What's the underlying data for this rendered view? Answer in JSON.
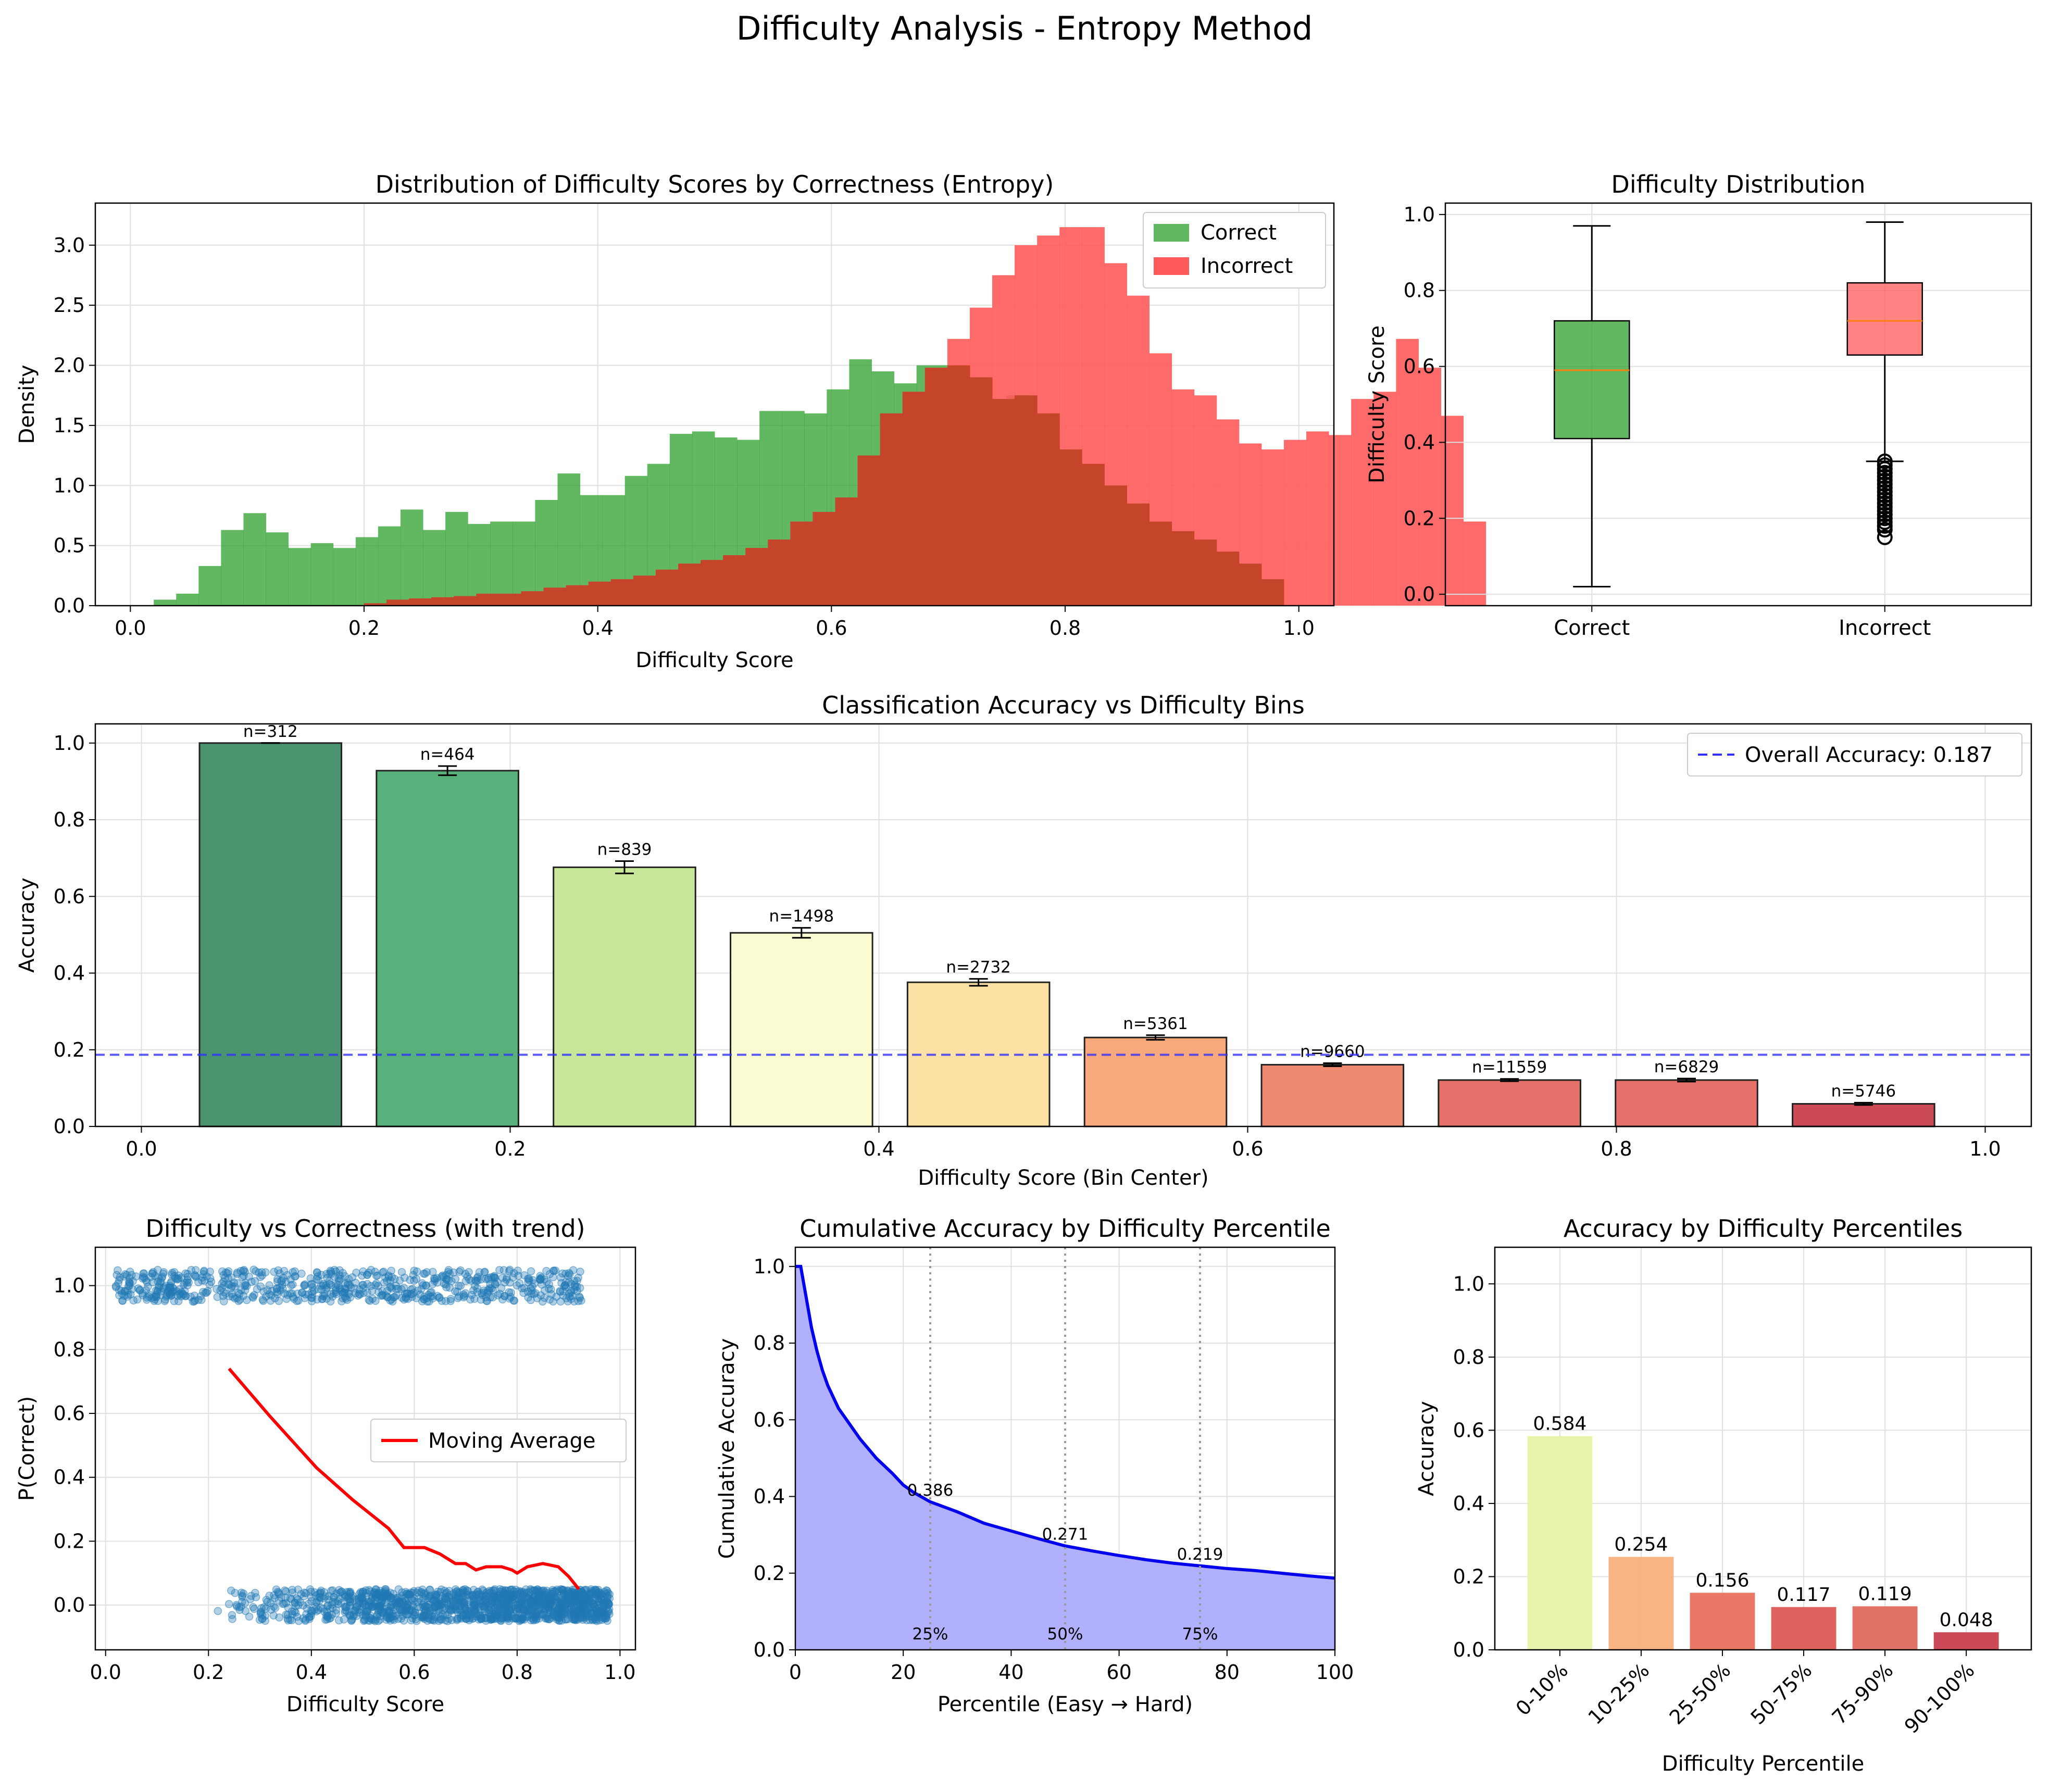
{
  "suptitle": "Difficulty Analysis - Entropy Method",
  "colors": {
    "correct": "#2ca02c",
    "incorrect": "#ff5a5a",
    "overlap": "#c4452a",
    "overall_line": "#3030ff",
    "moving_average": "#ff0000",
    "scatter": "#1f77b4",
    "cumulative_line": "#0000ee",
    "cumulative_fill": "#b0b0ff",
    "bin_colors": [
      "#4a9470",
      "#58b07a",
      "#c9e799",
      "#fbfbd2",
      "#fde0a4",
      "#f8a97c",
      "#ef8a72",
      "#e4726a",
      "#e4726a",
      "#cb4a56"
    ],
    "percentile_colors": [
      "#e6f4a8",
      "#f8b07c",
      "#e8715f",
      "#dc5a55",
      "#e06a60",
      "#c9404f"
    ]
  },
  "chart_data": [
    {
      "id": "histogram",
      "type": "bar",
      "title": "Distribution of Difficulty Scores by Correctness (Entropy)",
      "xlabel": "Difficulty Score",
      "ylabel": "Density",
      "xlim": [
        -0.03,
        1.03
      ],
      "ylim": [
        0,
        3.35
      ],
      "xticks": [
        "0.0",
        "0.2",
        "0.4",
        "0.6",
        "0.8",
        "1.0"
      ],
      "yticks": [
        "0.0",
        "0.5",
        "1.0",
        "1.5",
        "2.0",
        "2.5",
        "3.0"
      ],
      "legend": "top-right",
      "series": [
        {
          "name": "Correct",
          "x_start": 0.02,
          "bin_width": 0.0192,
          "values": [
            0.05,
            0.1,
            0.33,
            0.63,
            0.77,
            0.61,
            0.48,
            0.52,
            0.48,
            0.57,
            0.66,
            0.8,
            0.63,
            0.78,
            0.68,
            0.7,
            0.7,
            0.88,
            1.1,
            0.92,
            0.92,
            1.08,
            1.18,
            1.43,
            1.45,
            1.4,
            1.38,
            1.62,
            1.62,
            1.6,
            1.8,
            2.05,
            1.95,
            1.85,
            2.0,
            2.0,
            1.9,
            1.72,
            1.75,
            1.6,
            1.3,
            1.18,
            1.0,
            0.85,
            0.7,
            0.62,
            0.55,
            0.45,
            0.35,
            0.22
          ]
        },
        {
          "name": "Incorrect",
          "x_start": 0.2,
          "bin_width": 0.0192,
          "values": [
            0.02,
            0.05,
            0.06,
            0.07,
            0.08,
            0.1,
            0.1,
            0.12,
            0.15,
            0.17,
            0.2,
            0.22,
            0.25,
            0.3,
            0.35,
            0.38,
            0.42,
            0.48,
            0.55,
            0.7,
            0.78,
            0.9,
            1.25,
            1.6,
            1.78,
            1.98,
            2.22,
            2.48,
            2.75,
            3.0,
            3.08,
            3.15,
            3.15,
            2.85,
            2.58,
            2.1,
            1.8,
            1.75,
            1.55,
            1.35,
            1.3,
            1.38,
            1.45,
            1.42,
            1.72,
            1.78,
            2.22,
            1.98,
            1.58,
            0.7
          ]
        }
      ]
    },
    {
      "id": "boxplot",
      "type": "box",
      "title": "Difficulty Distribution",
      "ylabel": "Difficulty Score",
      "ylim": [
        -0.03,
        1.03
      ],
      "yticks": [
        "0.0",
        "0.2",
        "0.4",
        "0.6",
        "0.8",
        "1.0"
      ],
      "categories": [
        "Correct",
        "Incorrect"
      ],
      "boxes": [
        {
          "name": "Correct",
          "whisker_low": 0.02,
          "q1": 0.41,
          "median": 0.59,
          "q3": 0.72,
          "whisker_high": 0.97,
          "outliers": []
        },
        {
          "name": "Incorrect",
          "whisker_low": 0.35,
          "q1": 0.63,
          "median": 0.72,
          "q3": 0.82,
          "whisker_high": 0.98,
          "outliers": [
            0.15,
            0.17,
            0.18,
            0.19,
            0.2,
            0.21,
            0.22,
            0.23,
            0.24,
            0.25,
            0.26,
            0.27,
            0.28,
            0.29,
            0.3,
            0.31,
            0.32,
            0.33,
            0.34,
            0.35
          ]
        }
      ]
    },
    {
      "id": "accuracy_bins",
      "type": "bar",
      "title": "Classification Accuracy vs Difficulty Bins",
      "xlabel": "Difficulty Score (Bin Center)",
      "ylabel": "Accuracy",
      "xlim": [
        -0.025,
        1.025
      ],
      "ylim": [
        0,
        1.05
      ],
      "xticks": [
        "0.0",
        "0.2",
        "0.4",
        "0.6",
        "0.8",
        "1.0"
      ],
      "yticks": [
        "0.0",
        "0.2",
        "0.4",
        "0.6",
        "0.8",
        "1.0"
      ],
      "bar_width": 0.077,
      "x": [
        0.07,
        0.166,
        0.262,
        0.358,
        0.454,
        0.55,
        0.646,
        0.742,
        0.838,
        0.934
      ],
      "values": [
        1.0,
        0.928,
        0.676,
        0.505,
        0.376,
        0.232,
        0.161,
        0.121,
        0.121,
        0.059
      ],
      "errors": [
        0.0,
        0.012,
        0.016,
        0.013,
        0.009,
        0.006,
        0.004,
        0.003,
        0.004,
        0.003
      ],
      "labels": [
        "n=312",
        "n=464",
        "n=839",
        "n=1498",
        "n=2732",
        "n=5361",
        "n=9660",
        "n=11559",
        "n=6829",
        "n=5746"
      ],
      "overall_accuracy": 0.187,
      "overall_label": "Overall Accuracy: 0.187",
      "legend": "top-right"
    },
    {
      "id": "scatter_trend",
      "type": "scatter",
      "title": "Difficulty vs Correctness (with trend)",
      "xlabel": "Difficulty Score",
      "ylabel": "P(Correct)",
      "xlim": [
        -0.02,
        1.03
      ],
      "ylim": [
        -0.14,
        1.12
      ],
      "xticks": [
        "0.0",
        "0.2",
        "0.4",
        "0.6",
        "0.8",
        "1.0"
      ],
      "yticks": [
        "0.0",
        "0.2",
        "0.4",
        "0.6",
        "0.8",
        "1.0"
      ],
      "moving_average": {
        "name": "Moving Average",
        "x": [
          0.24,
          0.32,
          0.41,
          0.48,
          0.55,
          0.58,
          0.62,
          0.65,
          0.68,
          0.7,
          0.72,
          0.74,
          0.77,
          0.79,
          0.8,
          0.82,
          0.85,
          0.88,
          0.9,
          0.92
        ],
        "y": [
          0.74,
          0.59,
          0.43,
          0.33,
          0.24,
          0.18,
          0.18,
          0.16,
          0.13,
          0.13,
          0.11,
          0.12,
          0.12,
          0.11,
          0.1,
          0.12,
          0.13,
          0.12,
          0.09,
          0.05
        ]
      },
      "correct_range": [
        0.02,
        0.93
      ],
      "incorrect_range": [
        0.2,
        0.98
      ],
      "legend": "center-right"
    },
    {
      "id": "cumulative",
      "type": "area",
      "title": "Cumulative Accuracy by Difficulty Percentile",
      "xlabel": "Percentile (Easy → Hard)",
      "ylabel": "Cumulative Accuracy",
      "xlim": [
        0,
        100
      ],
      "ylim": [
        0,
        1.05
      ],
      "xticks": [
        "0",
        "20",
        "40",
        "60",
        "80",
        "100"
      ],
      "yticks": [
        "0.0",
        "0.2",
        "0.4",
        "0.6",
        "0.8",
        "1.0"
      ],
      "x": [
        0,
        1,
        2,
        3,
        4,
        5,
        6,
        8,
        10,
        12,
        15,
        18,
        20,
        22,
        25,
        30,
        35,
        40,
        45,
        50,
        55,
        60,
        65,
        70,
        75,
        80,
        85,
        90,
        95,
        100
      ],
      "y": [
        1.0,
        1.0,
        0.92,
        0.84,
        0.78,
        0.73,
        0.69,
        0.63,
        0.59,
        0.55,
        0.5,
        0.46,
        0.43,
        0.41,
        0.386,
        0.36,
        0.33,
        0.31,
        0.29,
        0.271,
        0.258,
        0.246,
        0.235,
        0.226,
        0.219,
        0.212,
        0.207,
        0.2,
        0.193,
        0.187
      ],
      "markers": [
        {
          "x": 25,
          "y": 0.386,
          "value_label": "0.386",
          "pct_label": "25%"
        },
        {
          "x": 50,
          "y": 0.271,
          "value_label": "0.271",
          "pct_label": "50%"
        },
        {
          "x": 75,
          "y": 0.219,
          "value_label": "0.219",
          "pct_label": "75%"
        }
      ]
    },
    {
      "id": "percentiles",
      "type": "bar",
      "title": "Accuracy by Difficulty Percentiles",
      "xlabel": "Difficulty Percentile",
      "ylabel": "Accuracy",
      "ylim": [
        0,
        1.1
      ],
      "yticks": [
        "0.0",
        "0.2",
        "0.4",
        "0.6",
        "0.8",
        "1.0"
      ],
      "categories": [
        "0-10%",
        "10-25%",
        "25-50%",
        "50-75%",
        "75-90%",
        "90-100%"
      ],
      "values": [
        0.584,
        0.254,
        0.156,
        0.117,
        0.119,
        0.048
      ],
      "labels": [
        "0.584",
        "0.254",
        "0.156",
        "0.117",
        "0.119",
        "0.048"
      ]
    }
  ]
}
